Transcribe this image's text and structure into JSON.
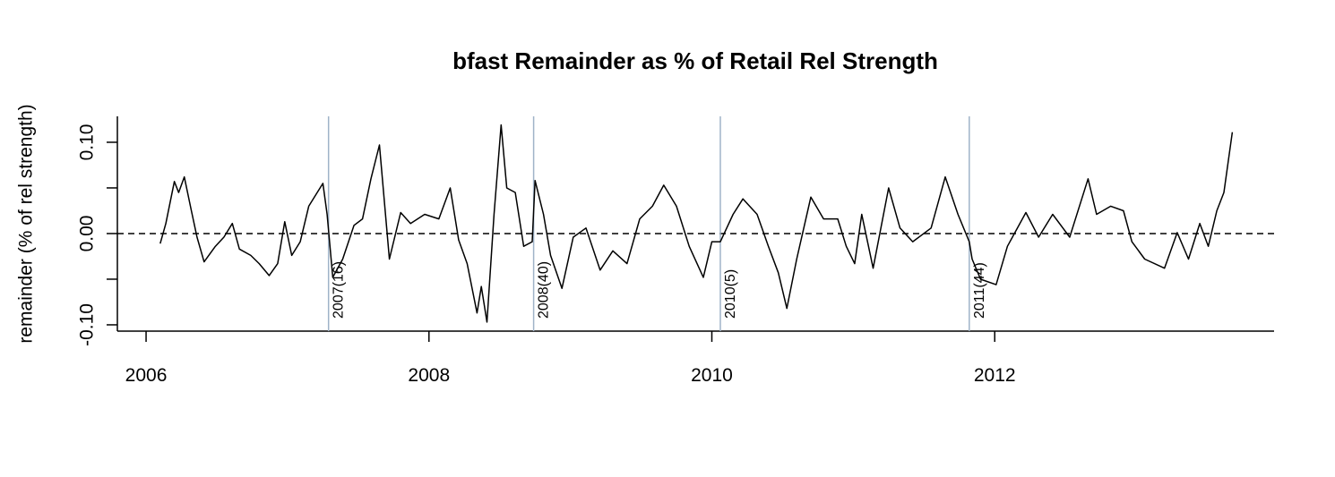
{
  "chart_data": {
    "type": "line",
    "title": "bfast Remainder as % of Retail Rel Strength",
    "ylabel": "remainder (% of rel strength)",
    "color": "#000000",
    "x": [
      2006.1,
      2006.14,
      2006.2,
      2006.23,
      2006.27,
      2006.32,
      2006.36,
      2006.41,
      2006.49,
      2006.55,
      2006.61,
      2006.66,
      2006.74,
      2006.8,
      2006.87,
      2006.93,
      2006.98,
      2007.03,
      2007.09,
      2007.15,
      2007.25,
      2007.28,
      2007.32,
      2007.39,
      2007.47,
      2007.53,
      2007.59,
      2007.65,
      2007.72,
      2007.8,
      2007.87,
      2007.97,
      2008.07,
      2008.15,
      2008.21,
      2008.27,
      2008.34,
      2008.37,
      2008.41,
      2008.46,
      2008.51,
      2008.55,
      2008.61,
      2008.67,
      2008.73,
      2008.75,
      2008.81,
      2008.86,
      2008.94,
      2009.02,
      2009.11,
      2009.21,
      2009.3,
      2009.4,
      2009.49,
      2009.58,
      2009.66,
      2009.75,
      2009.84,
      2009.94,
      2010.0,
      2010.06,
      2010.15,
      2010.22,
      2010.32,
      2010.4,
      2010.47,
      2010.53,
      2010.6,
      2010.7,
      2010.79,
      2010.89,
      2010.95,
      2011.01,
      2011.06,
      2011.14,
      2011.25,
      2011.33,
      2011.42,
      2011.55,
      2011.65,
      2011.74,
      2011.82,
      2011.84,
      2011.9,
      2012.01,
      2012.09,
      2012.22,
      2012.31,
      2012.41,
      2012.53,
      2012.66,
      2012.72,
      2012.82,
      2012.91,
      2012.97,
      2013.06,
      2013.2,
      2013.29,
      2013.37,
      2013.45,
      2013.51,
      2013.57,
      2013.62,
      2013.68
    ],
    "values": [
      -0.011,
      0.011,
      0.057,
      0.045,
      0.062,
      0.025,
      -0.004,
      -0.031,
      -0.014,
      -0.004,
      0.011,
      -0.017,
      -0.024,
      -0.033,
      -0.046,
      -0.033,
      0.013,
      -0.024,
      -0.009,
      0.03,
      0.055,
      0.021,
      -0.048,
      -0.028,
      0.009,
      0.016,
      0.06,
      0.097,
      -0.028,
      0.023,
      0.011,
      0.021,
      0.016,
      0.05,
      -0.007,
      -0.033,
      -0.087,
      -0.058,
      -0.097,
      0.021,
      0.119,
      0.05,
      0.045,
      -0.014,
      -0.009,
      0.058,
      0.021,
      -0.024,
      -0.06,
      -0.004,
      0.006,
      -0.04,
      -0.019,
      -0.033,
      0.016,
      0.03,
      0.053,
      0.03,
      -0.014,
      -0.048,
      -0.009,
      -0.009,
      0.021,
      0.038,
      0.021,
      -0.014,
      -0.043,
      -0.082,
      -0.028,
      0.04,
      0.016,
      0.016,
      -0.014,
      -0.033,
      0.021,
      -0.038,
      0.05,
      0.006,
      -0.009,
      0.006,
      0.062,
      0.021,
      -0.009,
      -0.028,
      -0.05,
      -0.056,
      -0.014,
      0.023,
      -0.004,
      0.021,
      -0.004,
      0.06,
      0.021,
      0.03,
      0.025,
      -0.009,
      -0.028,
      -0.038,
      0.001,
      -0.028,
      0.011,
      -0.014,
      0.025,
      0.045,
      0.111
    ],
    "xlim": [
      2005.797,
      2013.975
    ],
    "ylim": [
      -0.1069,
      0.1284
    ],
    "xticks": [
      2006,
      2008,
      2010,
      2012
    ],
    "yticks": [
      {
        "value": -0.1,
        "label": "-0.10"
      },
      {
        "value": -0.05,
        "label": null
      },
      {
        "value": 0,
        "label": "0.00"
      },
      {
        "value": 0.05,
        "label": null
      },
      {
        "value": 0.1,
        "label": "0.10"
      }
    ],
    "hline": 0,
    "breakpoints": [
      {
        "x": 2007.29,
        "label": "2007(16)"
      },
      {
        "x": 2008.74,
        "label": "2008(40)"
      },
      {
        "x": 2010.06,
        "label": "2010(5)"
      },
      {
        "x": 2011.82,
        "label": "2011(44)"
      }
    ]
  }
}
